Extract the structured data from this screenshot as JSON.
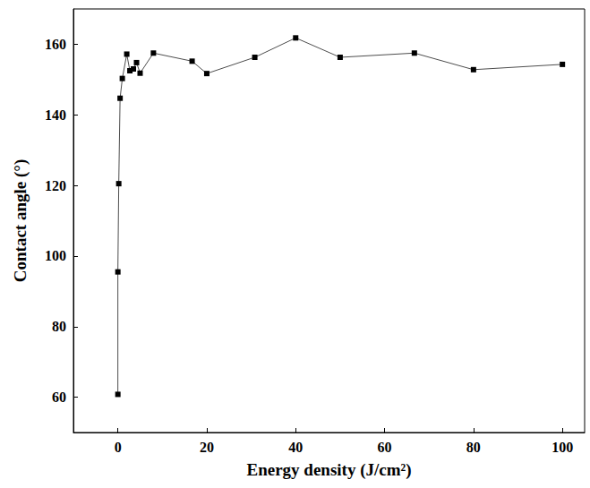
{
  "chart_data": {
    "type": "line",
    "x_label": "Energy density (J/cm²)",
    "y_label": "Contact angle (°)",
    "x": [
      0,
      0,
      0.2,
      0.5,
      1,
      2,
      2.7,
      3.5,
      4.2,
      5,
      8,
      16.7,
      20,
      30.8,
      40,
      50,
      66.7,
      80,
      100
    ],
    "values": [
      60.8,
      95.5,
      120.5,
      144.7,
      150.3,
      157.2,
      152.5,
      153,
      154.8,
      151.8,
      157.5,
      155.2,
      151.7,
      156.3,
      161.8,
      156.3,
      157.5,
      152.8,
      154.3
    ],
    "color": "#000000",
    "marker": "square",
    "xlim": [
      -10,
      105
    ],
    "xticks": [
      0,
      20,
      40,
      60,
      80,
      100
    ],
    "ylim": [
      50,
      170
    ],
    "yticks": [
      60,
      80,
      100,
      120,
      140,
      160
    ],
    "grid": false
  }
}
